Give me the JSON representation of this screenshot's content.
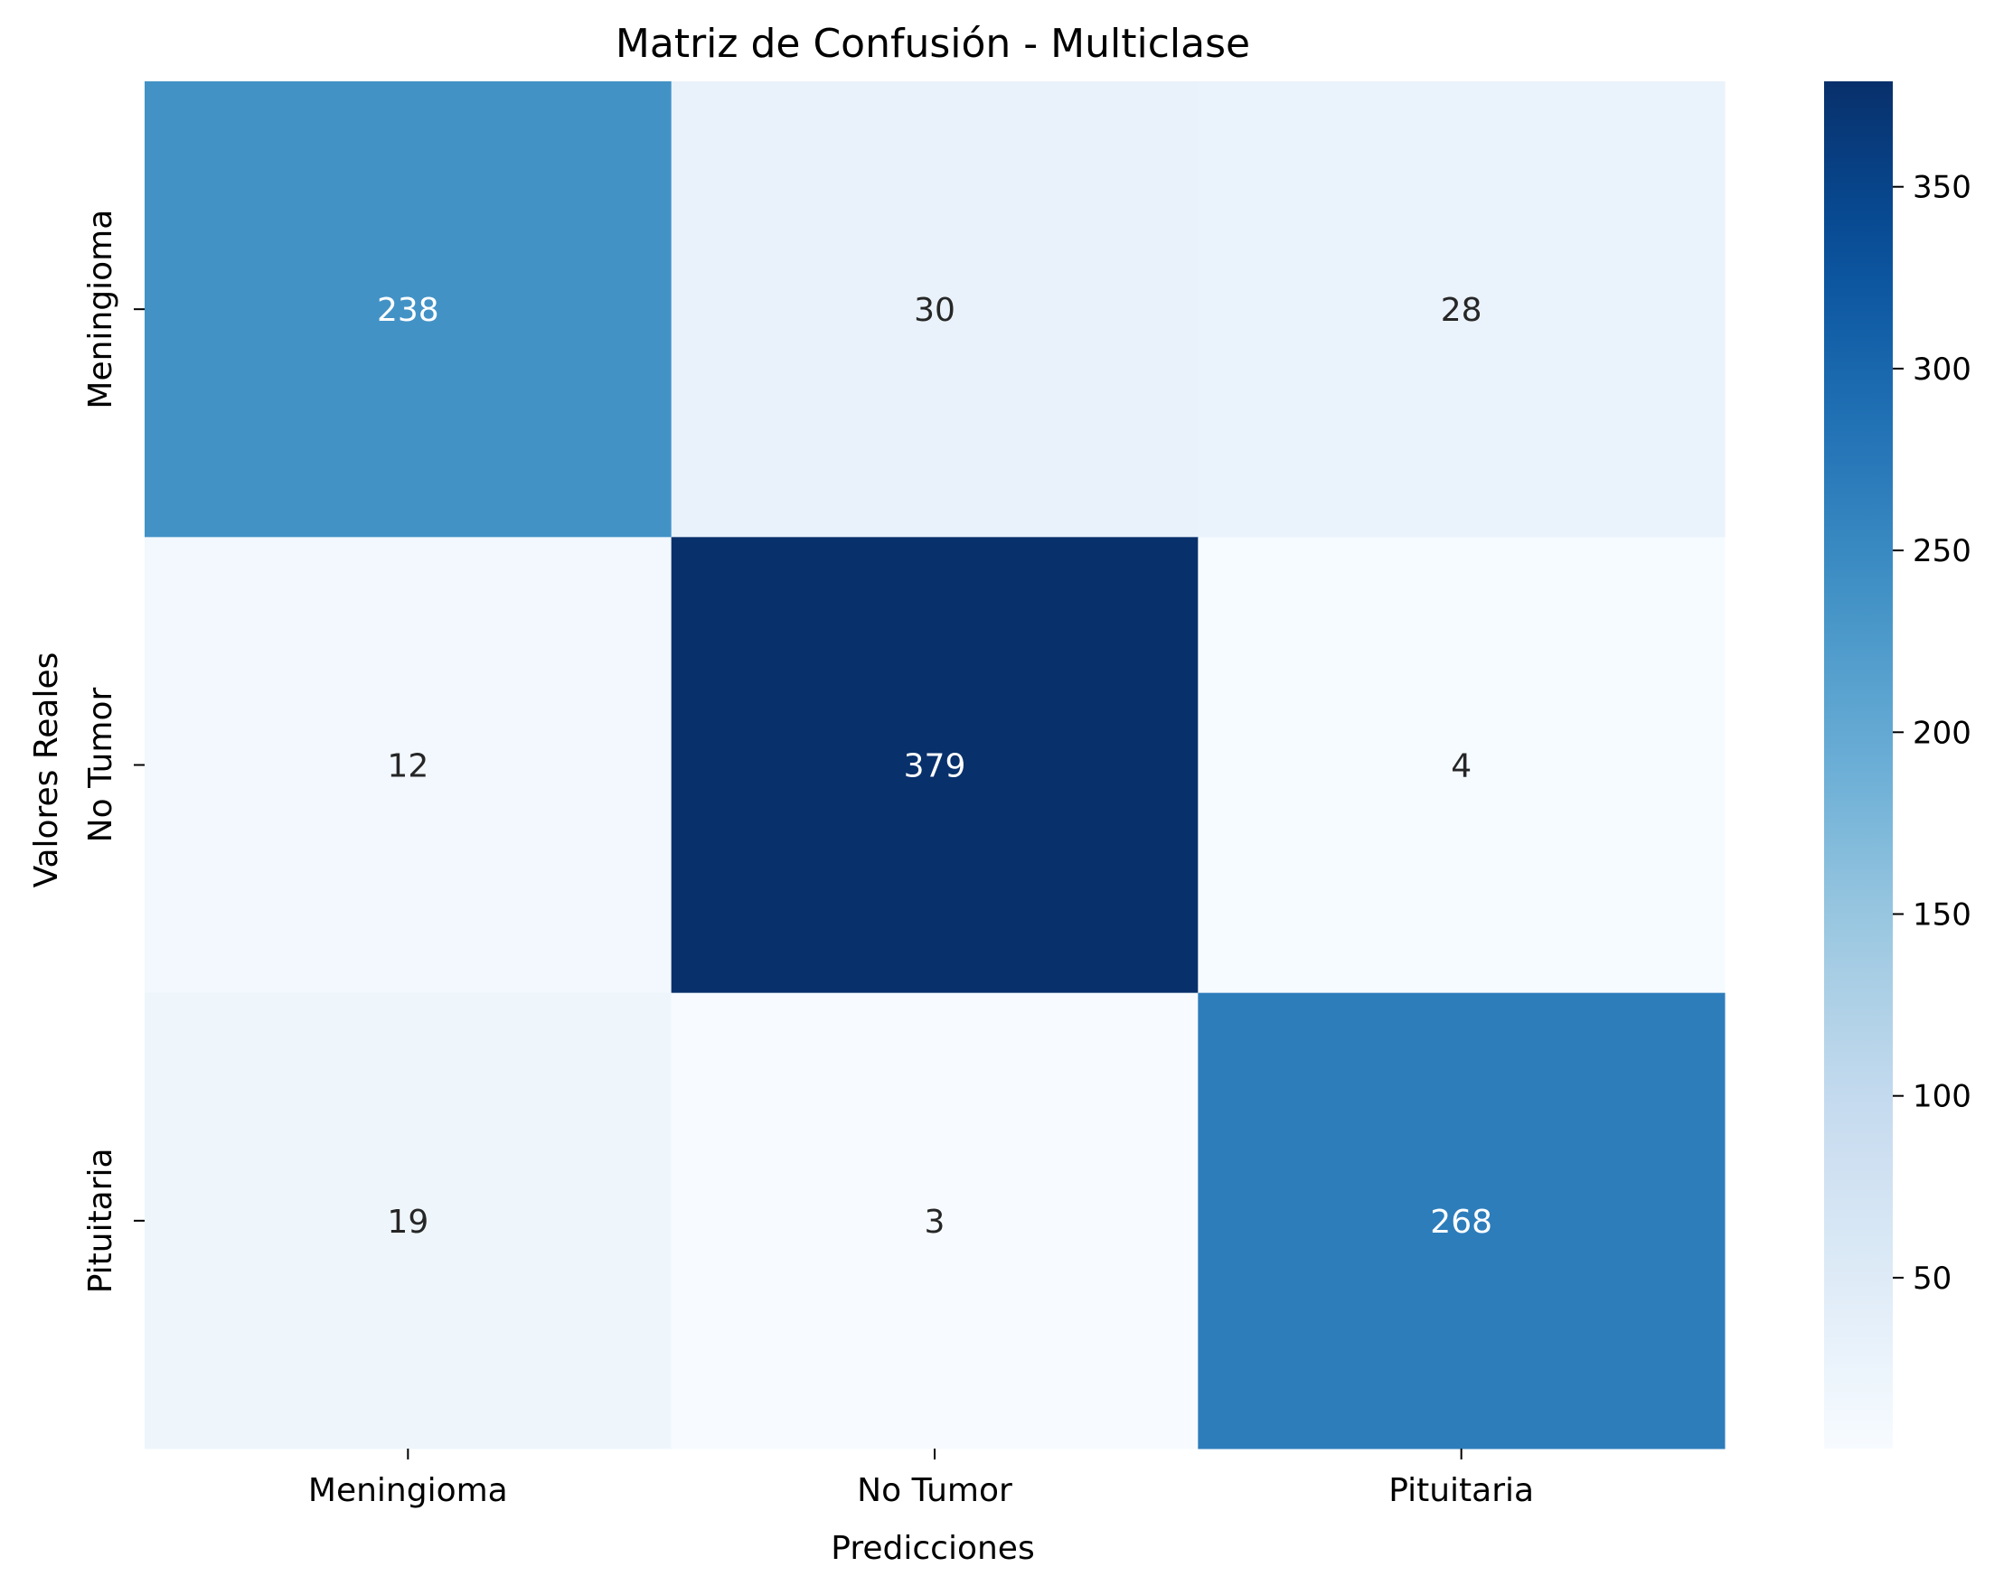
{
  "chart_data": {
    "type": "heatmap",
    "title": "Matriz de Confusión - Multiclase",
    "xlabel": "Predicciones",
    "ylabel": "Valores Reales",
    "x_categories": [
      "Meningioma",
      "No Tumor",
      "Pituitaria"
    ],
    "y_categories": [
      "Meningioma",
      "No Tumor",
      "Pituitaria"
    ],
    "values": [
      [
        238,
        30,
        28
      ],
      [
        12,
        379,
        4
      ],
      [
        19,
        3,
        268
      ]
    ],
    "colormap": "Blues",
    "colorbar": {
      "min": 3,
      "max": 379,
      "ticks": [
        50,
        100,
        150,
        200,
        250,
        300,
        350
      ]
    },
    "colors": {
      "light_text": "#ffffff",
      "dark_text": "#262626"
    }
  }
}
